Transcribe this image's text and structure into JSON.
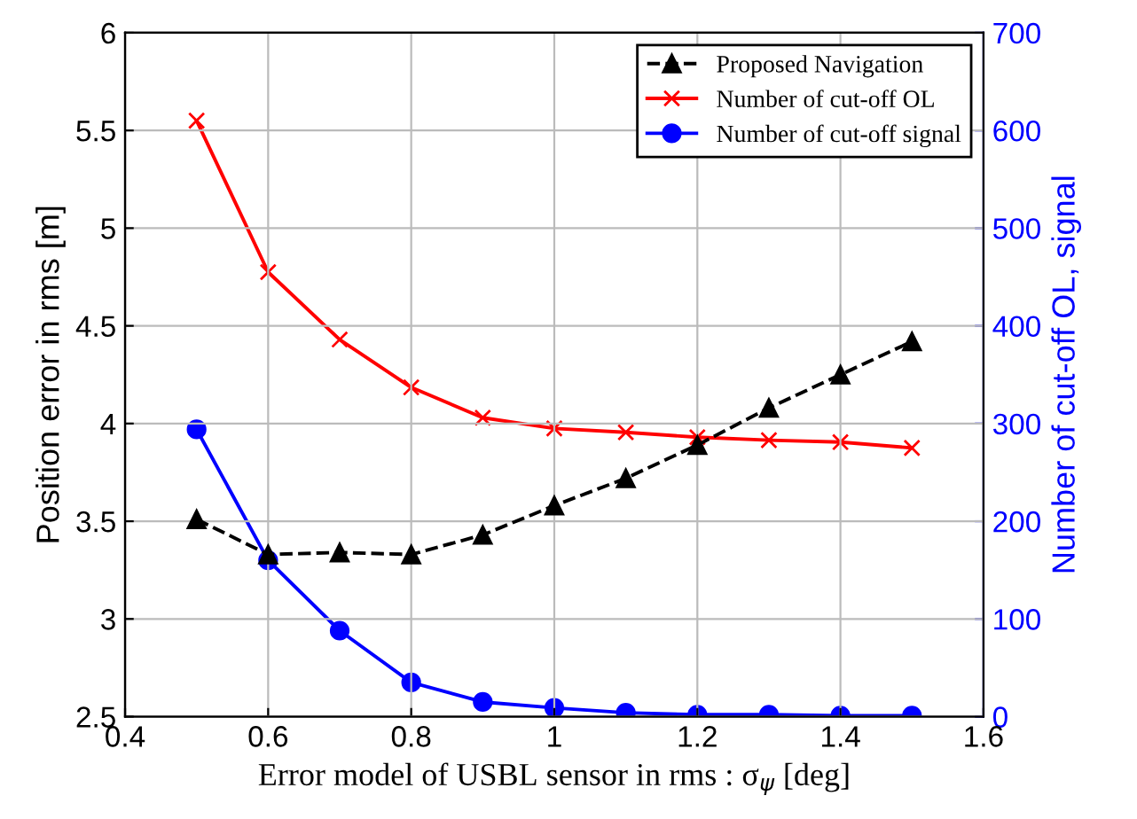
{
  "chart_data": {
    "type": "line",
    "xlabel": "Error model of USBL sensor in rms : σ$_{ψ}$ [deg]",
    "ylabel": "Position error in rms [m]",
    "y2label": "Number of cut-off OL, signal",
    "x": [
      0.5,
      0.6,
      0.7,
      0.8,
      0.9,
      1.0,
      1.1,
      1.2,
      1.3,
      1.4,
      1.5
    ],
    "series": [
      {
        "name": "Proposed Navigation",
        "color": "#000000",
        "marker": "triangle",
        "line_style": "dashed",
        "values": [
          3.51,
          3.33,
          3.34,
          3.33,
          3.43,
          3.58,
          3.72,
          3.89,
          4.08,
          4.25,
          4.42
        ]
      },
      {
        "name": "Number of cut-off OL",
        "color": "#ff0000",
        "marker": "cross",
        "line_style": "solid",
        "axis": "y2",
        "values": [
          610,
          455,
          386,
          337,
          306,
          295,
          291,
          286,
          283,
          281,
          275
        ]
      },
      {
        "name": "Number of cut-off signal",
        "color": "#0000ff",
        "marker": "circle",
        "line_style": "solid",
        "axis": "y2",
        "values": [
          294,
          160,
          88,
          35,
          15,
          9,
          4,
          2,
          2,
          1,
          1
        ]
      }
    ],
    "xlim": [
      0.4,
      1.6
    ],
    "xticks": [
      0.4,
      0.6,
      0.8,
      1,
      1.2,
      1.4,
      1.6
    ],
    "ylim": [
      2.5,
      6
    ],
    "yticks": [
      2.5,
      3,
      3.5,
      4,
      4.5,
      5,
      5.5,
      6
    ],
    "y2lim": [
      0,
      700
    ],
    "y2ticks": [
      0,
      100,
      200,
      300,
      400,
      500,
      600,
      700
    ],
    "grid": true,
    "legend": "top right"
  }
}
